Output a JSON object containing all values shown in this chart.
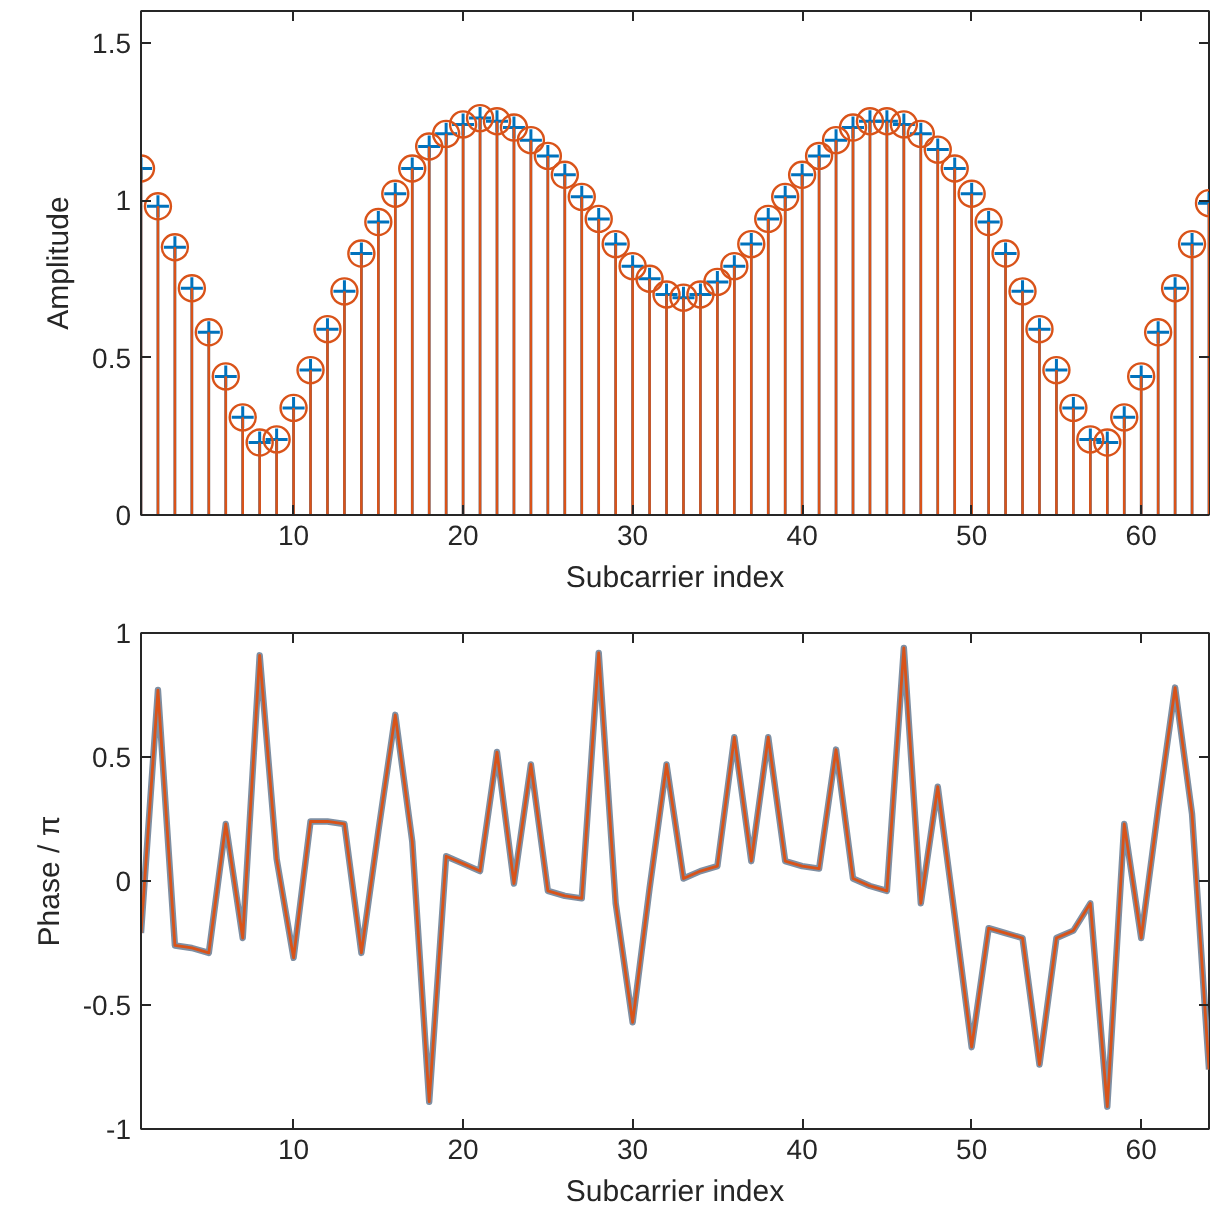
{
  "chart_data": [
    {
      "type": "lollipop",
      "xlabel": "Subcarrier index",
      "ylabel": "Amplitude",
      "x": [
        1,
        2,
        3,
        4,
        5,
        6,
        7,
        8,
        9,
        10,
        11,
        12,
        13,
        14,
        15,
        16,
        17,
        18,
        19,
        20,
        21,
        22,
        23,
        24,
        25,
        26,
        27,
        28,
        29,
        30,
        31,
        32,
        33,
        34,
        35,
        36,
        37,
        38,
        39,
        40,
        41,
        42,
        43,
        44,
        45,
        46,
        47,
        48,
        49,
        50,
        51,
        52,
        53,
        54,
        55,
        56,
        57,
        58,
        59,
        60,
        61,
        62,
        63,
        64
      ],
      "xlim": [
        1,
        64
      ],
      "xticks": [
        10,
        20,
        30,
        40,
        50,
        60
      ],
      "ylim": [
        0,
        1.6
      ],
      "yticks": [
        0,
        0.5,
        1,
        1.5
      ],
      "grid": false,
      "series": [
        {
          "color": "#0072bd",
          "marker": "cross",
          "values": [
            1.1,
            0.98,
            0.85,
            0.72,
            0.58,
            0.44,
            0.31,
            0.23,
            0.24,
            0.34,
            0.46,
            0.59,
            0.71,
            0.83,
            0.93,
            1.02,
            1.1,
            1.17,
            1.21,
            1.24,
            1.26,
            1.25,
            1.23,
            1.19,
            1.14,
            1.08,
            1.01,
            0.94,
            0.86,
            0.79,
            0.75,
            0.7,
            0.69,
            0.7,
            0.74,
            0.79,
            0.86,
            0.94,
            1.01,
            1.08,
            1.14,
            1.19,
            1.23,
            1.25,
            1.25,
            1.24,
            1.21,
            1.16,
            1.1,
            1.02,
            0.93,
            0.83,
            0.71,
            0.59,
            0.46,
            0.34,
            0.24,
            0.23,
            0.31,
            0.44,
            0.58,
            0.72,
            0.86,
            0.99
          ]
        },
        {
          "color": "#d95319",
          "marker": "circle",
          "values": [
            1.1,
            0.98,
            0.85,
            0.72,
            0.58,
            0.44,
            0.31,
            0.23,
            0.24,
            0.34,
            0.46,
            0.59,
            0.71,
            0.83,
            0.93,
            1.02,
            1.1,
            1.17,
            1.21,
            1.24,
            1.26,
            1.25,
            1.23,
            1.19,
            1.14,
            1.08,
            1.01,
            0.94,
            0.86,
            0.79,
            0.75,
            0.7,
            0.69,
            0.7,
            0.74,
            0.79,
            0.86,
            0.94,
            1.01,
            1.08,
            1.14,
            1.19,
            1.23,
            1.25,
            1.25,
            1.24,
            1.21,
            1.16,
            1.1,
            1.02,
            0.93,
            0.83,
            0.71,
            0.59,
            0.46,
            0.34,
            0.24,
            0.23,
            0.31,
            0.44,
            0.58,
            0.72,
            0.86,
            0.99
          ]
        }
      ]
    },
    {
      "type": "line",
      "xlabel": "Subcarrier index",
      "ylabel": "Phase / π",
      "x": [
        1,
        2,
        3,
        4,
        5,
        6,
        7,
        8,
        9,
        10,
        11,
        12,
        13,
        14,
        15,
        16,
        17,
        18,
        19,
        20,
        21,
        22,
        23,
        24,
        25,
        26,
        27,
        28,
        29,
        30,
        31,
        32,
        33,
        34,
        35,
        36,
        37,
        38,
        39,
        40,
        41,
        42,
        43,
        44,
        45,
        46,
        47,
        48,
        49,
        50,
        51,
        52,
        53,
        54,
        55,
        56,
        57,
        58,
        59,
        60,
        61,
        62,
        63,
        64
      ],
      "xlim": [
        1,
        64
      ],
      "xticks": [
        10,
        20,
        30,
        40,
        50,
        60
      ],
      "ylim": [
        -1,
        1
      ],
      "yticks": [
        -1,
        -0.5,
        0,
        0.5,
        1
      ],
      "grid": false,
      "line_style": "solid",
      "marker": "none",
      "series": [
        {
          "color": "#7e8fa3",
          "values": [
            -0.21,
            0.77,
            -0.26,
            -0.27,
            -0.29,
            0.23,
            -0.23,
            0.91,
            0.09,
            -0.31,
            0.24,
            0.24,
            0.23,
            -0.29,
            0.2,
            0.67,
            0.16,
            -0.89,
            0.1,
            0.07,
            0.04,
            0.52,
            -0.01,
            0.47,
            -0.04,
            -0.06,
            -0.07,
            0.92,
            -0.09,
            -0.57,
            -0.03,
            0.47,
            0.01,
            0.04,
            0.06,
            0.58,
            0.08,
            0.58,
            0.08,
            0.06,
            0.05,
            0.53,
            0.01,
            -0.02,
            -0.04,
            0.94,
            -0.09,
            0.38,
            -0.14,
            -0.67,
            -0.19,
            -0.21,
            -0.23,
            -0.74,
            -0.23,
            -0.2,
            -0.09,
            -0.91,
            0.23,
            -0.23,
            0.29,
            0.78,
            0.27,
            -0.76
          ]
        },
        {
          "color": "#d95319",
          "values": [
            -0.21,
            0.77,
            -0.26,
            -0.27,
            -0.29,
            0.23,
            -0.23,
            0.91,
            0.09,
            -0.31,
            0.24,
            0.24,
            0.23,
            -0.29,
            0.2,
            0.67,
            0.16,
            -0.89,
            0.1,
            0.07,
            0.04,
            0.52,
            -0.01,
            0.47,
            -0.04,
            -0.06,
            -0.07,
            0.92,
            -0.09,
            -0.57,
            -0.03,
            0.47,
            0.01,
            0.04,
            0.06,
            0.58,
            0.08,
            0.58,
            0.08,
            0.06,
            0.05,
            0.53,
            0.01,
            -0.02,
            -0.04,
            0.94,
            -0.09,
            0.38,
            -0.14,
            -0.67,
            -0.19,
            -0.21,
            -0.23,
            -0.74,
            -0.23,
            -0.2,
            -0.09,
            -0.91,
            0.23,
            -0.23,
            0.29,
            0.78,
            0.27,
            -0.76
          ]
        }
      ]
    }
  ]
}
